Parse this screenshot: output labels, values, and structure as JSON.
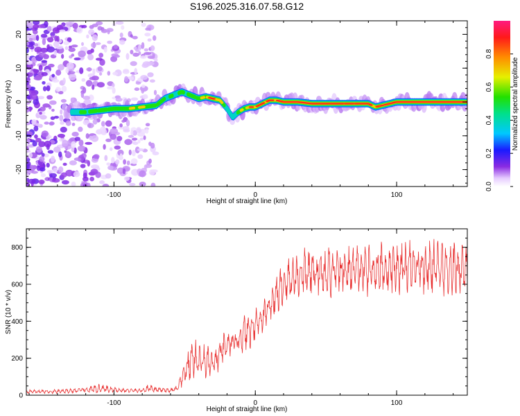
{
  "title": "S196.2025.316.07.58.G12",
  "chart_data": [
    {
      "type": "heatmap",
      "name": "spectrogram",
      "xlabel": "Height of straight line (km)",
      "ylabel": "Frequency (Hz)",
      "xlim": [
        -162,
        150
      ],
      "ylim": [
        -25,
        24
      ],
      "xticks": [
        -100,
        0,
        100
      ],
      "xtick_labels": [
        "-100",
        "0",
        "100"
      ],
      "yticks": [
        -20,
        -10,
        0,
        10,
        20
      ],
      "ytick_labels": [
        "-20",
        "-10",
        "0",
        "10",
        "20"
      ],
      "colorbar": {
        "label": "Normalized spectral amplitude",
        "range": [
          0,
          1
        ],
        "ticks": [
          0,
          0.2,
          0.4,
          0.6,
          0.8
        ],
        "tick_labels": [
          "0.0",
          "0.2",
          "0.4",
          "0.6",
          "0.8"
        ]
      },
      "ridge": {
        "x": [
          -130,
          -120,
          -110,
          -100,
          -90,
          -80,
          -70,
          -64,
          -58,
          -52,
          -46,
          -40,
          -35,
          -30,
          -25,
          -20,
          -16,
          -12,
          -8,
          -4,
          0,
          5,
          10,
          15,
          20,
          30,
          40,
          60,
          80,
          85,
          90,
          100,
          120,
          150
        ],
        "freq": [
          -3,
          -3,
          -2.5,
          -2,
          -2,
          -1.5,
          -1,
          1,
          2,
          3,
          2,
          1,
          1.5,
          1,
          0.5,
          -2,
          -4.5,
          -3,
          -2,
          -1.5,
          -1.5,
          -0.5,
          0.5,
          0.5,
          0,
          0,
          -0.5,
          -0.5,
          -0.5,
          -1.5,
          -1,
          0,
          0,
          0
        ],
        "amplitude": [
          0.35,
          0.45,
          0.5,
          0.5,
          0.55,
          0.6,
          0.5,
          0.45,
          0.4,
          0.45,
          0.45,
          0.5,
          0.65,
          0.85,
          0.6,
          0.45,
          0.3,
          0.5,
          0.6,
          0.7,
          0.8,
          0.85,
          0.8,
          0.75,
          0.9,
          0.95,
          0.95,
          0.9,
          0.9,
          0.75,
          0.85,
          0.95,
          0.95,
          0.95
        ]
      },
      "noise_region_x": [
        -162,
        -70
      ]
    },
    {
      "type": "line",
      "name": "snr",
      "xlabel": "Height of straight line (km)",
      "ylabel": "SNR (10 * v/v)",
      "xlim": [
        -162,
        150
      ],
      "ylim": [
        0,
        900
      ],
      "xticks": [
        -100,
        0,
        100
      ],
      "xtick_labels": [
        "-100",
        "0",
        "100"
      ],
      "yticks": [
        0,
        200,
        400,
        600,
        800
      ],
      "ytick_labels": [
        "0",
        "200",
        "400",
        "600",
        "800"
      ],
      "series": [
        {
          "name": "SNR",
          "color": "#e83030",
          "envelope_x": [
            -162,
            -140,
            -120,
            -110,
            -100,
            -90,
            -80,
            -75,
            -70,
            -60,
            -55,
            -50,
            -45,
            -40,
            -35,
            -30,
            -25,
            -20,
            -15,
            -10,
            -5,
            0,
            5,
            10,
            15,
            20,
            25,
            30,
            40,
            60,
            80,
            100,
            120,
            140,
            150
          ],
          "envelope_center": [
            20,
            20,
            28,
            35,
            28,
            25,
            25,
            40,
            30,
            25,
            35,
            120,
            200,
            190,
            180,
            160,
            220,
            270,
            280,
            320,
            350,
            390,
            420,
            480,
            540,
            600,
            630,
            650,
            660,
            670,
            680,
            690,
            690,
            690,
            690
          ],
          "envelope_spread": [
            10,
            12,
            15,
            30,
            15,
            12,
            12,
            25,
            15,
            12,
            20,
            80,
            120,
            100,
            100,
            80,
            100,
            90,
            80,
            100,
            120,
            100,
            90,
            100,
            120,
            130,
            140,
            150,
            150,
            150,
            150,
            160,
            160,
            160,
            160
          ]
        }
      ]
    }
  ]
}
